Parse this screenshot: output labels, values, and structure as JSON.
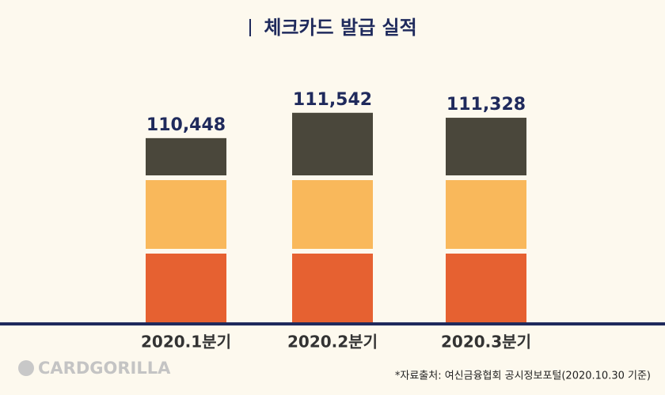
{
  "chart_data": {
    "type": "bar",
    "title": "체크카드 발급 실적",
    "categories": [
      "2020.1분기",
      "2020.2분기",
      "2020.3분기"
    ],
    "values": [
      110448,
      111542,
      111328
    ],
    "value_labels": [
      "110,448",
      "111,542",
      "111,328"
    ],
    "ylim": [
      102500,
      113000
    ],
    "colors": [
      "#e66131",
      "#f9b85b",
      "#4a473b"
    ],
    "label_color": "#1f2a5c",
    "brand": "CARDGORILLA",
    "source": "*자료출처: 여신금융협회 공시정보포털(2020.10.30 기준)"
  }
}
